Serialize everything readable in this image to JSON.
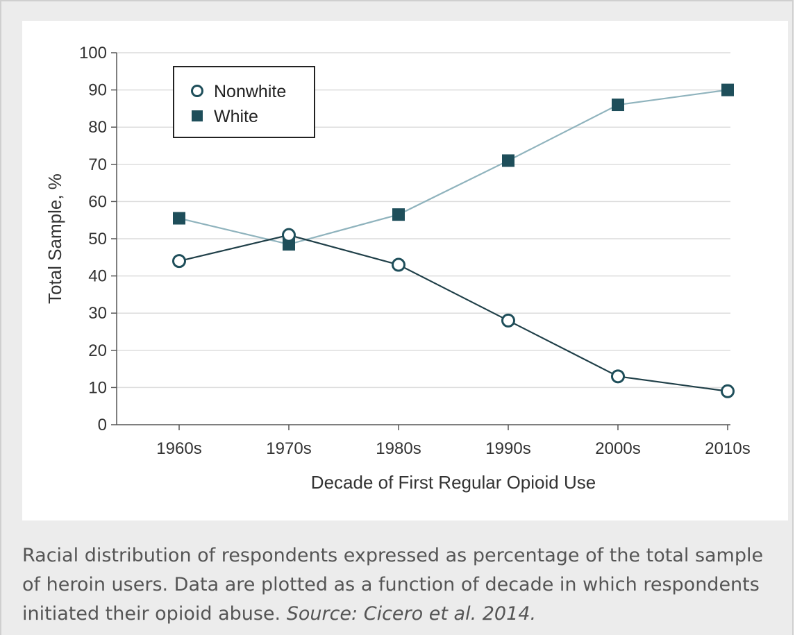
{
  "chart_data": {
    "type": "line",
    "categories": [
      "1960s",
      "1970s",
      "1980s",
      "1990s",
      "2000s",
      "2010s"
    ],
    "series": [
      {
        "name": "Nonwhite",
        "values": [
          44,
          51,
          43,
          28,
          13,
          9
        ],
        "color": "#1f3f48",
        "marker": "open-circle"
      },
      {
        "name": "White",
        "values": [
          55.5,
          48.5,
          56.5,
          71,
          86,
          90
        ],
        "color": "#8fb3bd",
        "marker": "filled-square"
      }
    ],
    "xlabel": "Decade of First Regular Opioid Use",
    "ylabel": "Total Sample, %",
    "ylim": [
      0,
      100
    ],
    "yticks": [
      0,
      10,
      20,
      30,
      40,
      50,
      60,
      70,
      80,
      90,
      100
    ],
    "grid": true,
    "legend_position": "top-left",
    "marker_color": "#1e4e5a"
  },
  "caption": {
    "text": "Racial distribution of respondents expressed as percentage of the total sample of heroin users. Data are plotted as a function of decade in which respondents initiated their opioid abuse.",
    "source": "Source: Cicero et al. 2014."
  }
}
